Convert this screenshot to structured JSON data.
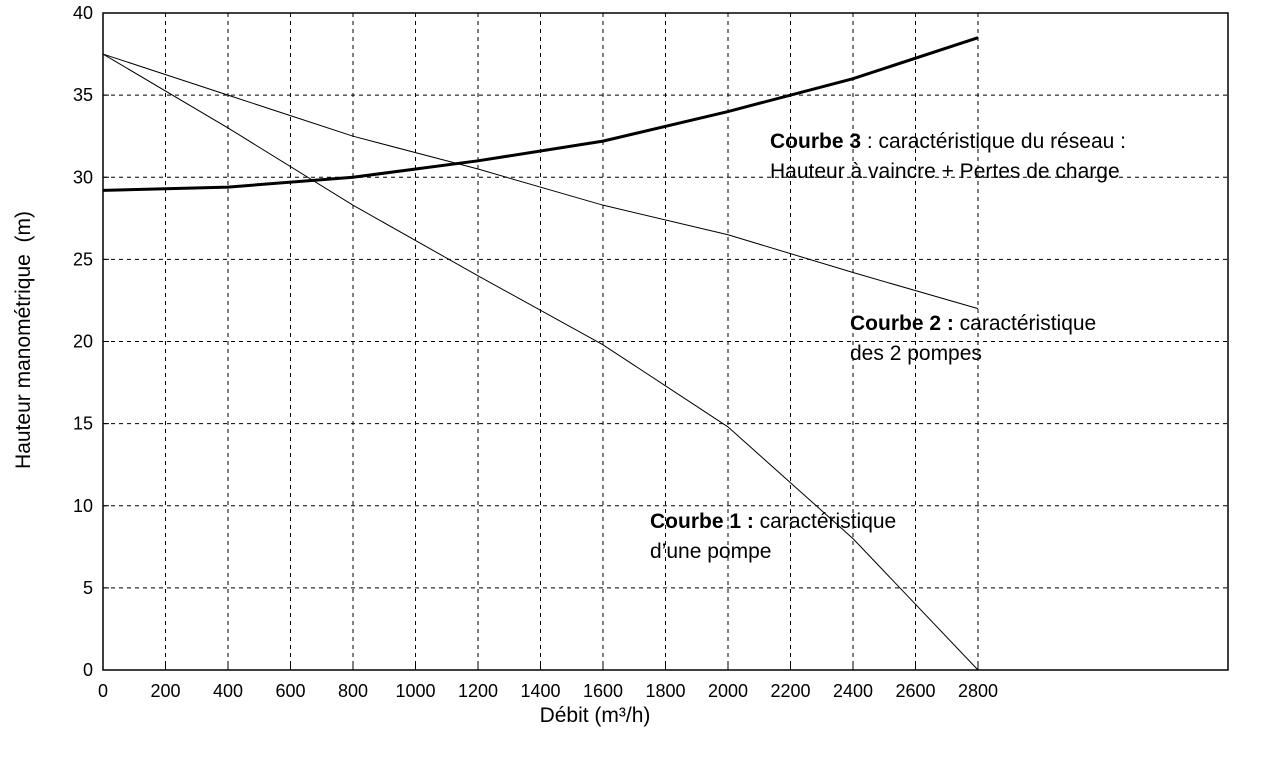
{
  "chart_data": {
    "type": "line",
    "x_label": "Débit (m³/h)",
    "y_label": "Hauteur manométrique  (m)",
    "x": [
      0,
      400,
      800,
      1200,
      1600,
      2000,
      2400,
      2800
    ],
    "series": [
      {
        "name": "Courbe 1",
        "color": "#000000",
        "line_width": 1,
        "values": [
          37.5,
          33,
          28.3,
          24,
          19.8,
          14.8,
          8,
          0
        ]
      },
      {
        "name": "Courbe 2",
        "color": "#000000",
        "line_width": 1,
        "values": [
          37.5,
          35,
          32.5,
          30.5,
          28.3,
          26.5,
          24.2,
          22
        ]
      },
      {
        "name": "Courbe 3",
        "color": "#000000",
        "line_width": 3,
        "values": [
          29.2,
          29.4,
          30,
          31,
          32.2,
          34,
          36,
          38.5
        ]
      }
    ],
    "annotations": [
      {
        "bold": "Courbe 3",
        "text": " : caractéristique du réseau :",
        "line2": "Hauteur à vaincre + Pertes de charge"
      },
      {
        "bold": "Courbe 2 :",
        "text": " caractéristique",
        "line2": "des 2 pompes"
      },
      {
        "bold": "Courbe 1 :",
        "text": " caractéristique",
        "line2": "d’une pompe"
      }
    ],
    "xlim": [
      0,
      3600
    ],
    "xticks": [
      0,
      200,
      400,
      600,
      800,
      1000,
      1200,
      1400,
      1600,
      1800,
      2000,
      2200,
      2400,
      2600,
      2800
    ],
    "ylim": [
      0,
      40
    ],
    "yticks": [
      0,
      5,
      10,
      15,
      20,
      25,
      30,
      35,
      40
    ],
    "grid": true
  }
}
